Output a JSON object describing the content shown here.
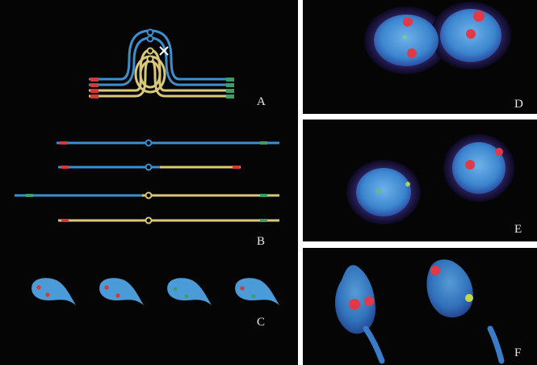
{
  "panels": {
    "A": {
      "label": "A"
    },
    "B": {
      "label": "B"
    },
    "C": {
      "label": "C"
    },
    "D": {
      "label": "D"
    },
    "E": {
      "label": "E"
    },
    "F": {
      "label": "F"
    }
  },
  "colors": {
    "background": "#050505",
    "blue_chromatid": "#3d8fd0",
    "yellow_chromatid": "#d9c77a",
    "red_probe": "#d23a3a",
    "green_probe": "#3f9c6a",
    "nucleus_blue": "#3f8fd4",
    "halo_purple": "#3a2d7a"
  },
  "icons": {
    "crossover_mark": "x-cross-icon"
  }
}
